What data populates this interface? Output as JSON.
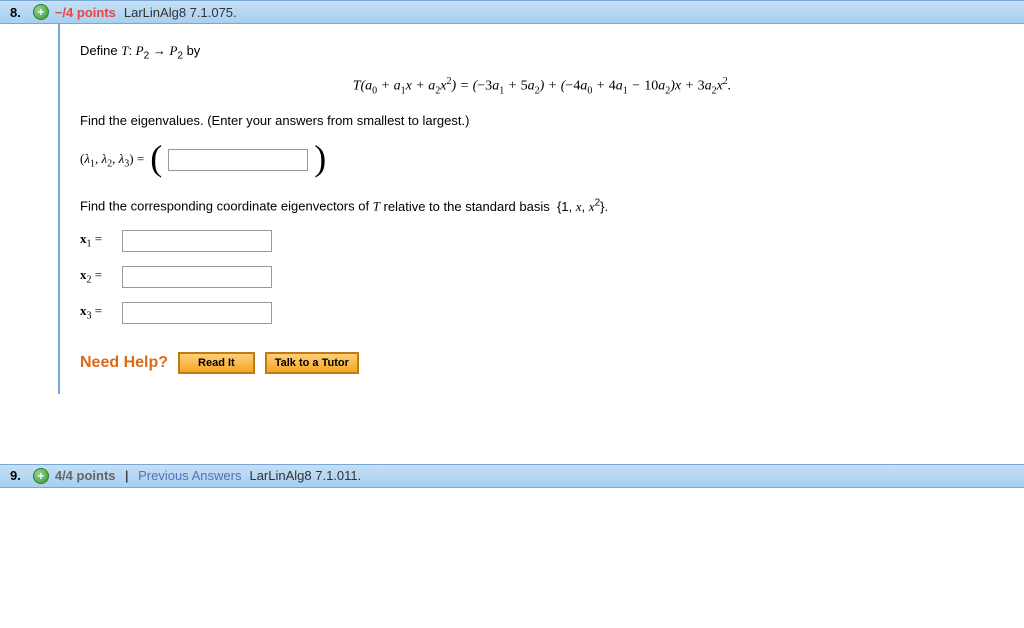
{
  "q8": {
    "number": "8.",
    "points_prefix": "−/4 points",
    "source": "LarLinAlg8 7.1.075.",
    "define_text": "Define",
    "define_map": "T: P",
    "define_map_sub1": "2",
    "arrow": "→",
    "define_map_sub2": "2",
    "by": "by",
    "eq_lhs": "T(a",
    "eq_expr": "T(a₀ + a₁x + a₂x²) = (−3a₁ + 5a₂) + (−4a₀ + 4a₁ − 10a₂)x + 3a₂x².",
    "eigen_prompt": "Find the eigenvalues. (Enter your answers from smallest to largest.)",
    "lambda_label": "(λ₁, λ₂, λ₃) =",
    "vectors_prompt_a": "Find the corresponding coordinate eigenvectors of ",
    "vectors_prompt_t": "T",
    "vectors_prompt_b": " relative to the standard basis  {1, x, x²}.",
    "x1": "x₁ =",
    "x2": "x₂ =",
    "x3": "x₃ =",
    "need_help": "Need Help?",
    "read_it": "Read It",
    "talk_tutor": "Talk to a Tutor"
  },
  "q9": {
    "number": "9.",
    "points": "4/4 points",
    "prev": "Previous Answers",
    "source": "LarLinAlg8 7.1.011."
  },
  "colors": {
    "header_bg_top": "#c5dff5",
    "header_bg_bottom": "#a8d0f0",
    "header_border": "#7aa8d6",
    "need_help_color": "#d86a1a",
    "btn_bg_top": "#ffcf7a",
    "btn_bg_bottom": "#f5a623",
    "btn_border": "#c07a15",
    "prev_answers_color": "#5a6db8",
    "neg_points_color": "#e84545"
  }
}
